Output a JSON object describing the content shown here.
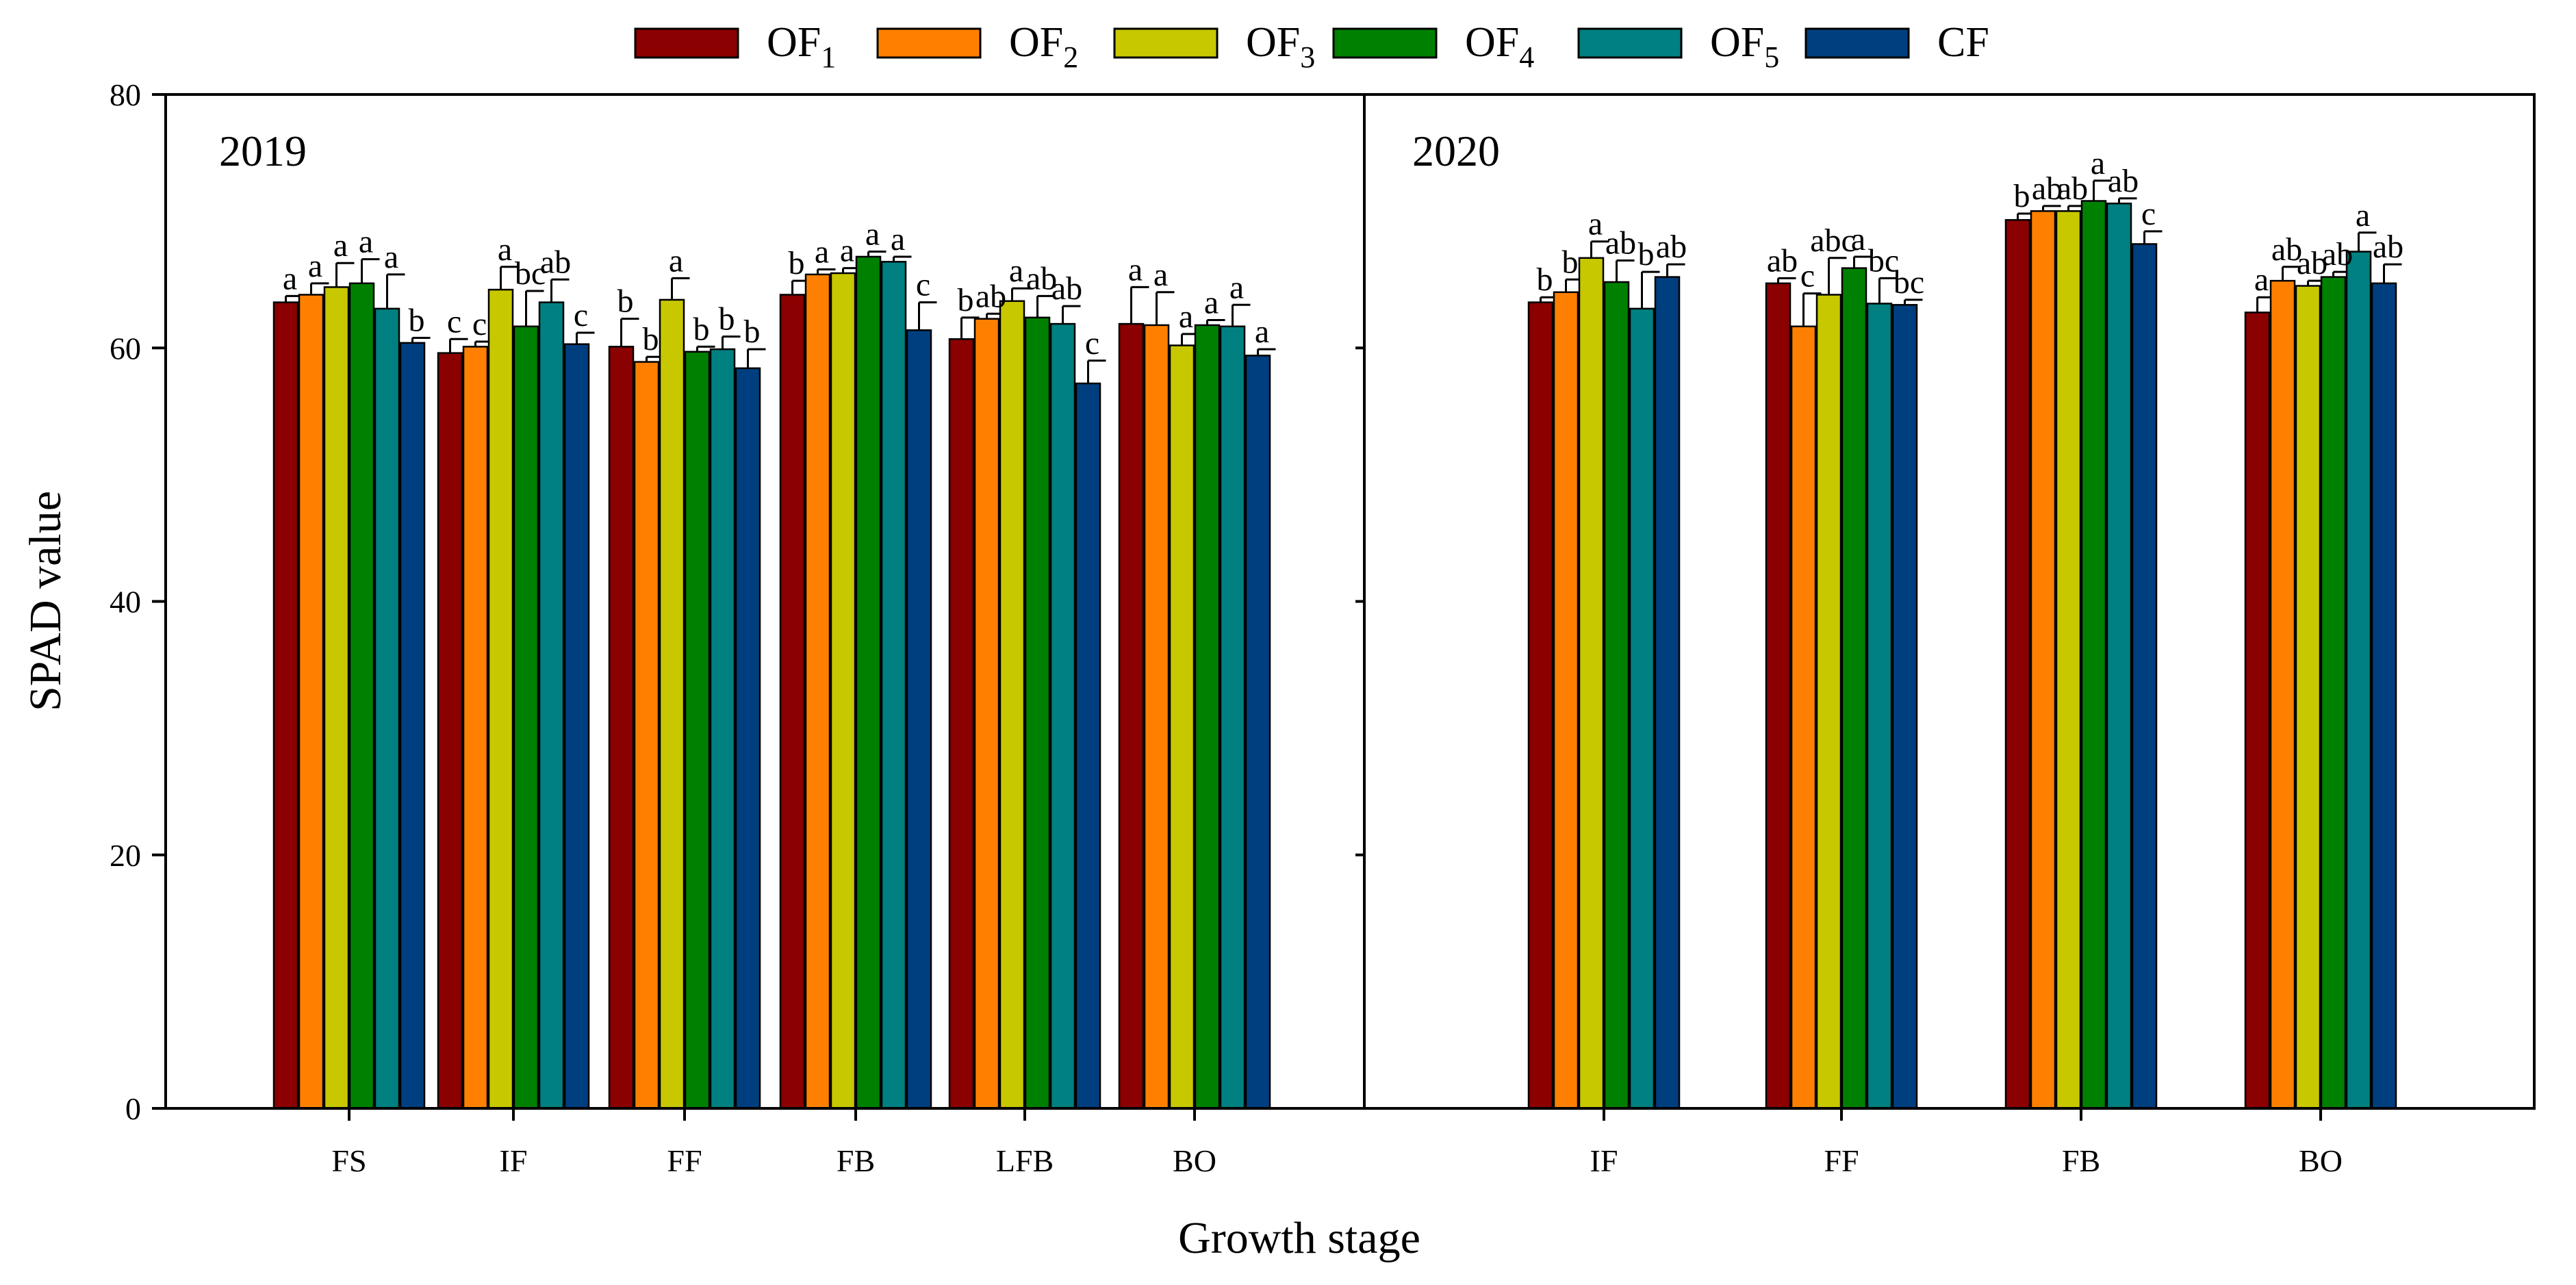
{
  "chart_data": {
    "type": "bar",
    "xlabel": "Growth stage",
    "ylabel": "SPAD value",
    "ylim": [
      0,
      80
    ],
    "yticks": [
      0,
      20,
      40,
      60,
      80
    ],
    "grid": false,
    "legend_position": "top",
    "series": [
      {
        "name": "OF",
        "sub": "1",
        "color": "#8B0000"
      },
      {
        "name": "OF",
        "sub": "2",
        "color": "#FF8000"
      },
      {
        "name": "OF",
        "sub": "3",
        "color": "#C8C800"
      },
      {
        "name": "OF",
        "sub": "4",
        "color": "#008000"
      },
      {
        "name": "OF",
        "sub": "5",
        "color": "#008080"
      },
      {
        "name": "CF",
        "sub": "",
        "color": "#003F7F"
      }
    ],
    "panels": [
      {
        "label": "2019",
        "categories": [
          "FS",
          "IF",
          "FF",
          "FB",
          "LFB",
          "BO"
        ],
        "values": [
          [
            63.6,
            64.2,
            64.8,
            65.1,
            63.1,
            60.4
          ],
          [
            59.6,
            60.1,
            64.6,
            61.7,
            63.6,
            60.3
          ],
          [
            60.1,
            58.9,
            63.8,
            59.7,
            59.9,
            58.4
          ],
          [
            64.2,
            65.8,
            65.9,
            67.2,
            66.8,
            61.4
          ],
          [
            60.7,
            62.3,
            63.7,
            62.4,
            61.9,
            57.2
          ],
          [
            61.9,
            61.8,
            60.2,
            61.8,
            61.7,
            59.4
          ]
        ],
        "errors": [
          [
            0.5,
            0.9,
            1.9,
            1.9,
            2.7,
            0.4
          ],
          [
            1.1,
            0.4,
            1.8,
            2.8,
            1.8,
            0.9
          ],
          [
            2.2,
            0.4,
            1.7,
            0.4,
            1.0,
            1.5
          ],
          [
            1.1,
            0.4,
            0.4,
            0.4,
            0.4,
            2.2
          ],
          [
            1.7,
            0.4,
            1.0,
            1.7,
            1.4,
            1.8
          ],
          [
            2.9,
            2.6,
            0.9,
            0.4,
            1.7,
            0.5
          ]
        ],
        "labels": [
          [
            "a",
            "a",
            "a",
            "a",
            "a",
            "b"
          ],
          [
            "c",
            "c",
            "a",
            "bc",
            "ab",
            "c"
          ],
          [
            "b",
            "b",
            "a",
            "b",
            "b",
            "b"
          ],
          [
            "b",
            "a",
            "a",
            "a",
            "a",
            "c"
          ],
          [
            "b",
            "ab",
            "a",
            "ab",
            "ab",
            "c"
          ],
          [
            "a",
            "a",
            "a",
            "a",
            "a",
            "a"
          ]
        ]
      },
      {
        "label": "2020",
        "categories": [
          "IF",
          "FF",
          "FB",
          "BO"
        ],
        "values": [
          [
            63.6,
            64.4,
            67.1,
            65.2,
            63.1,
            65.6
          ],
          [
            65.1,
            61.7,
            64.2,
            66.3,
            63.5,
            63.4
          ],
          [
            70.1,
            70.8,
            70.8,
            71.6,
            71.4,
            68.2
          ],
          [
            62.8,
            65.3,
            64.9,
            65.6,
            67.6,
            65.1
          ]
        ],
        "errors": [
          [
            0.4,
            1.0,
            1.3,
            1.7,
            2.9,
            1.0
          ],
          [
            0.4,
            2.6,
            2.9,
            0.9,
            2.0,
            0.4
          ],
          [
            0.5,
            0.4,
            0.4,
            1.6,
            0.4,
            1.0
          ],
          [
            1.2,
            1.1,
            0.4,
            0.4,
            1.5,
            1.5
          ]
        ],
        "labels": [
          [
            "b",
            "b",
            "a",
            "ab",
            "b",
            "ab"
          ],
          [
            "ab",
            "c",
            "abc",
            "a",
            "bc",
            "bc"
          ],
          [
            "b",
            "ab",
            "ab",
            "a",
            "ab",
            "c"
          ],
          [
            "a",
            "ab",
            "ab",
            "ab",
            "a",
            "ab"
          ]
        ]
      }
    ]
  }
}
